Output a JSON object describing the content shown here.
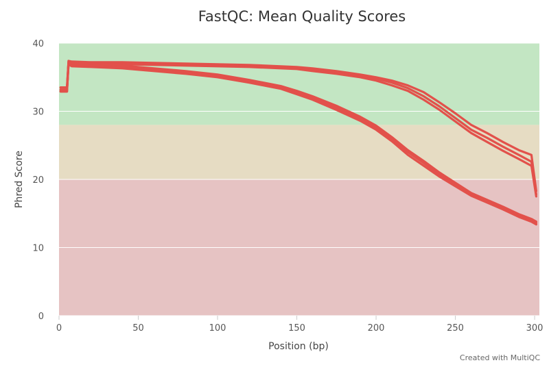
{
  "chart_data": {
    "type": "line",
    "title": "FastQC: Mean Quality Scores",
    "xlabel": "Position (bp)",
    "ylabel": "Phred Score",
    "xlim": [
      0,
      303
    ],
    "ylim": [
      0,
      40
    ],
    "xticks": [
      0,
      50,
      100,
      150,
      200,
      250,
      300
    ],
    "yticks": [
      0,
      10,
      20,
      30,
      40
    ],
    "line_color": "#e2514b",
    "zones": [
      {
        "from": 28,
        "to": 40,
        "color": "#c3e6c3"
      },
      {
        "from": 20,
        "to": 28,
        "color": "#e6dcc3"
      },
      {
        "from": 0,
        "to": 20,
        "color": "#e6c3c3"
      }
    ],
    "series": [
      {
        "x": [
          1,
          5,
          6,
          8,
          20,
          40,
          60,
          80,
          100,
          120,
          140,
          150,
          160,
          175,
          190,
          200,
          210,
          220,
          230,
          240,
          250,
          260,
          270,
          280,
          290,
          298,
          301
        ],
        "y": [
          33.5,
          33.5,
          37.4,
          37.3,
          37.2,
          37.2,
          37.1,
          37.0,
          36.9,
          36.8,
          36.6,
          36.5,
          36.3,
          35.9,
          35.4,
          35.0,
          34.5,
          33.8,
          32.8,
          31.3,
          29.7,
          28.0,
          26.8,
          25.5,
          24.3,
          23.6,
          18.3
        ]
      },
      {
        "x": [
          1,
          5,
          6,
          8,
          20,
          40,
          60,
          80,
          100,
          120,
          140,
          150,
          160,
          175,
          190,
          200,
          210,
          220,
          230,
          240,
          250,
          260,
          270,
          280,
          290,
          298,
          301
        ],
        "y": [
          33.1,
          33.1,
          37.2,
          37.1,
          37.0,
          37.0,
          36.9,
          36.8,
          36.7,
          36.6,
          36.5,
          36.4,
          36.1,
          35.7,
          35.2,
          34.8,
          34.2,
          33.4,
          32.2,
          30.7,
          29.0,
          27.3,
          26.1,
          24.8,
          23.6,
          22.6,
          17.8
        ]
      },
      {
        "x": [
          1,
          5,
          6,
          8,
          20,
          40,
          60,
          80,
          100,
          120,
          140,
          150,
          160,
          175,
          190,
          200,
          210,
          220,
          230,
          240,
          250,
          260,
          270,
          280,
          290,
          298,
          301
        ],
        "y": [
          32.9,
          32.9,
          37.0,
          36.9,
          36.9,
          36.9,
          36.8,
          36.7,
          36.6,
          36.5,
          36.3,
          36.2,
          35.9,
          35.5,
          35.0,
          34.5,
          33.8,
          33.0,
          31.7,
          30.2,
          28.5,
          26.8,
          25.5,
          24.2,
          23.0,
          22.0,
          17.5
        ]
      },
      {
        "x": [
          1,
          5,
          6,
          8,
          20,
          40,
          60,
          80,
          100,
          120,
          140,
          150,
          160,
          175,
          190,
          200,
          210,
          220,
          230,
          240,
          250,
          260,
          270,
          280,
          290,
          298,
          301
        ],
        "y": [
          33.5,
          33.5,
          37.3,
          37.0,
          36.9,
          36.7,
          36.3,
          35.9,
          35.4,
          34.6,
          33.7,
          33.0,
          32.2,
          30.8,
          29.2,
          27.9,
          26.2,
          24.3,
          22.7,
          21.0,
          19.5,
          18.0,
          17.0,
          16.0,
          14.9,
          14.2,
          13.8
        ]
      },
      {
        "x": [
          1,
          5,
          6,
          8,
          20,
          40,
          60,
          80,
          100,
          120,
          140,
          150,
          160,
          175,
          190,
          200,
          210,
          220,
          230,
          240,
          250,
          260,
          270,
          280,
          290,
          298,
          301
        ],
        "y": [
          33.2,
          33.2,
          37.1,
          36.8,
          36.7,
          36.5,
          36.1,
          35.7,
          35.2,
          34.4,
          33.5,
          32.8,
          32.0,
          30.5,
          28.9,
          27.6,
          25.9,
          24.0,
          22.4,
          20.7,
          19.3,
          17.8,
          16.8,
          15.8,
          14.7,
          14.0,
          13.6
        ]
      },
      {
        "x": [
          1,
          5,
          6,
          8,
          20,
          40,
          60,
          80,
          100,
          120,
          140,
          150,
          160,
          175,
          190,
          200,
          210,
          220,
          230,
          240,
          250,
          260,
          270,
          280,
          290,
          298,
          301
        ],
        "y": [
          32.9,
          32.9,
          36.9,
          36.6,
          36.5,
          36.3,
          35.9,
          35.5,
          35.0,
          34.2,
          33.3,
          32.5,
          31.7,
          30.2,
          28.6,
          27.3,
          25.6,
          23.6,
          22.0,
          20.4,
          19.0,
          17.6,
          16.6,
          15.6,
          14.5,
          13.8,
          13.4
        ]
      }
    ]
  },
  "credit": "Created with MultiQC"
}
